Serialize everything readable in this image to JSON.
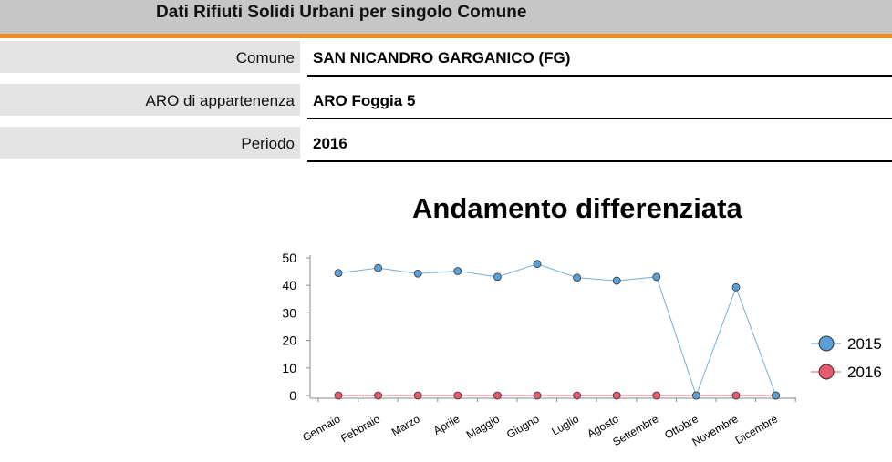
{
  "header": {
    "title": "Dati Rifiuti Solidi Urbani per singolo Comune"
  },
  "info": [
    {
      "label": "Comune",
      "value": "SAN NICANDRO GARGANICO (FG)"
    },
    {
      "label": "ARO di appartenenza",
      "value": "ARO Foggia 5"
    },
    {
      "label": "Periodo",
      "value": "2016"
    }
  ],
  "chart_data": {
    "type": "line",
    "title": "Andamento differenziata",
    "xlabel": "",
    "ylabel": "",
    "categories": [
      "Gennaio",
      "Febbraio",
      "Marzo",
      "Aprile",
      "Maggio",
      "Giugno",
      "Luglio",
      "Agosto",
      "Settembre",
      "Ottobre",
      "Novembre",
      "Dicembre"
    ],
    "ylim": [
      0,
      50
    ],
    "yticks": [
      0,
      10,
      20,
      30,
      40,
      50
    ],
    "grid": false,
    "legend": "right",
    "series": [
      {
        "name": "2015",
        "color": "#5aa0d8",
        "values": [
          44.5,
          46.3,
          44.3,
          45.2,
          43.1,
          47.8,
          42.8,
          41.7,
          43.1,
          0,
          39.3,
          0
        ]
      },
      {
        "name": "2016",
        "color": "#e8596b",
        "values": [
          0,
          0,
          0,
          0,
          0,
          0,
          0,
          0,
          0,
          0,
          0,
          0
        ]
      }
    ]
  }
}
